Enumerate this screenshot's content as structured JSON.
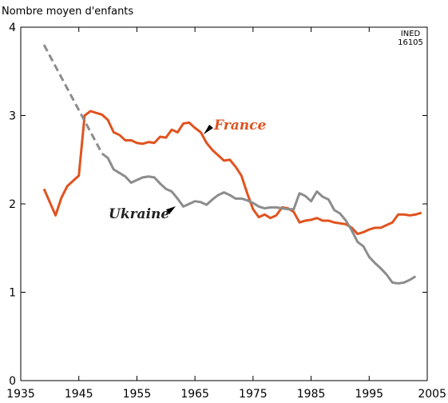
{
  "chart_data": {
    "type": "line",
    "y_label": "Nombre moyen d'enfants",
    "note": [
      "INED",
      "16105"
    ],
    "xlim": [
      1935,
      2005
    ],
    "xticks": [
      1935,
      1945,
      1955,
      1965,
      1975,
      1985,
      1995,
      2005
    ],
    "ylim": [
      0,
      4
    ],
    "yticks": [
      0,
      1,
      2,
      3,
      4
    ],
    "series": [
      {
        "name": "France",
        "color": "#e0531f",
        "x": [
          1939,
          1941,
          1942,
          1943,
          1945,
          1946,
          1947,
          1948,
          1949,
          1950,
          1951,
          1952,
          1953,
          1954,
          1955,
          1956,
          1957,
          1958,
          1959,
          1960,
          1961,
          1962,
          1963,
          1964,
          1965,
          1966,
          1967,
          1968,
          1969,
          1970,
          1971,
          1972,
          1973,
          1974,
          1975,
          1976,
          1977,
          1978,
          1979,
          1980,
          1981,
          1982,
          1983,
          1984,
          1985,
          1986,
          1987,
          1988,
          1989,
          1990,
          1991,
          1992,
          1993,
          1994,
          1995,
          1996,
          1997,
          1998,
          1999,
          2000,
          2001,
          2002,
          2003,
          2004
        ],
        "values": [
          2.17,
          1.87,
          2.07,
          2.2,
          2.32,
          3.0,
          3.05,
          3.03,
          3.01,
          2.95,
          2.81,
          2.78,
          2.72,
          2.72,
          2.69,
          2.68,
          2.7,
          2.69,
          2.76,
          2.75,
          2.84,
          2.81,
          2.91,
          2.92,
          2.86,
          2.81,
          2.69,
          2.61,
          2.55,
          2.49,
          2.5,
          2.42,
          2.32,
          2.12,
          1.94,
          1.85,
          1.88,
          1.84,
          1.87,
          1.96,
          1.95,
          1.91,
          1.79,
          1.81,
          1.82,
          1.84,
          1.81,
          1.81,
          1.79,
          1.78,
          1.77,
          1.73,
          1.66,
          1.68,
          1.71,
          1.73,
          1.73,
          1.76,
          1.79,
          1.88,
          1.88,
          1.87,
          1.88,
          1.9
        ]
      },
      {
        "name": "Ukraine",
        "color": "#8c8c8c",
        "x": [
          1949,
          1950,
          1951,
          1952,
          1953,
          1954,
          1955,
          1956,
          1957,
          1958,
          1959,
          1960,
          1961,
          1962,
          1963,
          1964,
          1965,
          1966,
          1967,
          1968,
          1969,
          1970,
          1971,
          1972,
          1973,
          1974,
          1975,
          1976,
          1977,
          1978,
          1979,
          1980,
          1981,
          1982,
          1983,
          1984,
          1985,
          1986,
          1987,
          1988,
          1989,
          1990,
          1991,
          1992,
          1993,
          1994,
          1995,
          1996,
          1997,
          1998,
          1999,
          2000,
          2001,
          2002,
          2003
        ],
        "values": [
          2.57,
          2.52,
          2.39,
          2.35,
          2.31,
          2.24,
          2.27,
          2.3,
          2.31,
          2.3,
          2.23,
          2.17,
          2.14,
          2.06,
          1.97,
          2.0,
          2.03,
          2.02,
          1.99,
          2.05,
          2.1,
          2.13,
          2.1,
          2.06,
          2.06,
          2.04,
          2.01,
          1.97,
          1.95,
          1.96,
          1.96,
          1.95,
          1.94,
          1.94,
          2.12,
          2.09,
          2.03,
          2.14,
          2.08,
          2.05,
          1.93,
          1.89,
          1.81,
          1.7,
          1.57,
          1.52,
          1.4,
          1.33,
          1.27,
          1.2,
          1.11,
          1.1,
          1.11,
          1.14,
          1.18
        ]
      },
      {
        "color": "#8c8c8c",
        "dashed": true,
        "x": [
          1939,
          1949
        ],
        "values": [
          3.8,
          2.57
        ]
      }
    ]
  }
}
